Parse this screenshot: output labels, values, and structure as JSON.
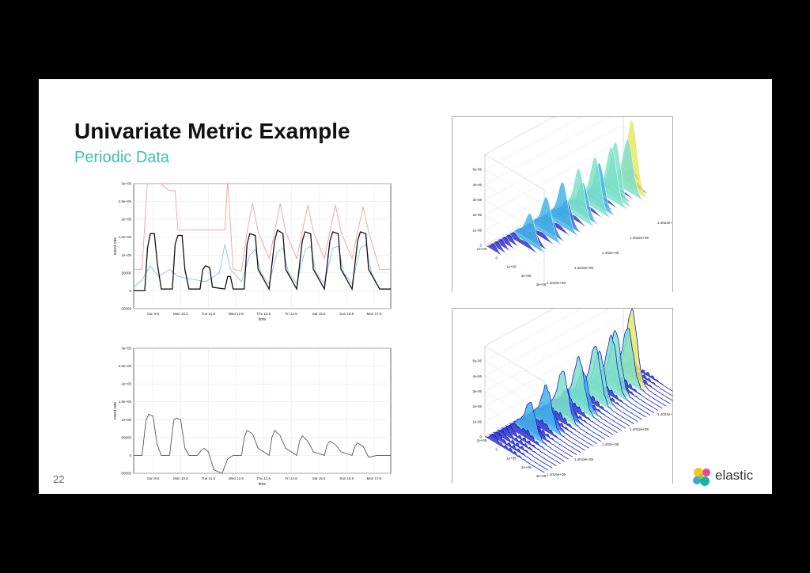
{
  "slide": {
    "title": "Univariate Metric Example",
    "subtitle": "Periodic Data",
    "page_number": "22",
    "logo_text": "elastic"
  },
  "colors": {
    "accent": "#3dbfb0",
    "upper_bound": "#e8a39e",
    "actual": "#111111",
    "model": "#8cbfe0"
  },
  "chart_data": [
    {
      "type": "line",
      "xlabel": "time",
      "ylabel": "event rate",
      "x_ticks": [
        "Sun 9.6",
        "Mon 10.6",
        "Tue 11.6",
        "Wed 12.6",
        "Thu 13.6",
        "Fri 14.6",
        "Sat 15.6",
        "Sun 16.6",
        "Mon 17.6"
      ],
      "y_ticks": [
        "3e+05",
        "2.5e+05",
        "2e+05",
        "1.5e+05",
        "1e+05",
        "50000",
        "0",
        "-50000"
      ],
      "ylim": [
        -50000,
        300000
      ],
      "grid": true,
      "series": [
        {
          "name": "",
          "color": "#e8a39e",
          "values": [
            [
              0,
              60000
            ],
            [
              0.3,
              60000
            ],
            [
              0.5,
              310000
            ],
            [
              0.6,
              310000
            ],
            [
              0.8,
              310000
            ],
            [
              1.3,
              280000
            ],
            [
              1.5,
              280000
            ],
            [
              1.6,
              170000
            ],
            [
              3.3,
              170000
            ],
            [
              3.4,
              310000
            ],
            [
              3.6,
              60000
            ],
            [
              3.9,
              55000
            ],
            [
              4.1,
              165000
            ],
            [
              4.3,
              245000
            ],
            [
              4.5,
              165000
            ],
            [
              4.9,
              90000
            ],
            [
              5.1,
              165000
            ],
            [
              5.3,
              245000
            ],
            [
              5.5,
              165000
            ],
            [
              5.9,
              90000
            ],
            [
              6.1,
              165000
            ],
            [
              6.3,
              240000
            ],
            [
              6.5,
              165000
            ],
            [
              6.9,
              90000
            ],
            [
              7.1,
              165000
            ],
            [
              7.3,
              240000
            ],
            [
              7.5,
              165000
            ],
            [
              7.9,
              90000
            ],
            [
              8.1,
              165000
            ],
            [
              8.3,
              235000
            ],
            [
              8.5,
              165000
            ],
            [
              8.9,
              60000
            ],
            [
              9.3,
              60000
            ]
          ]
        },
        {
          "name": "",
          "color": "#8cbfe0",
          "values": [
            [
              0,
              10000
            ],
            [
              0.3,
              30000
            ],
            [
              0.6,
              70000
            ],
            [
              0.9,
              40000
            ],
            [
              1.3,
              60000
            ],
            [
              1.6,
              40000
            ],
            [
              2.3,
              30000
            ],
            [
              2.6,
              25000
            ],
            [
              3.1,
              50000
            ],
            [
              3.3,
              130000
            ],
            [
              3.5,
              60000
            ],
            [
              3.9,
              25000
            ],
            [
              4.2,
              100000
            ],
            [
              4.4,
              115000
            ],
            [
              4.6,
              50000
            ],
            [
              4.9,
              20000
            ],
            [
              5.2,
              110000
            ],
            [
              5.4,
              120000
            ],
            [
              5.6,
              50000
            ],
            [
              5.9,
              20000
            ],
            [
              6.2,
              115000
            ],
            [
              6.4,
              125000
            ],
            [
              6.6,
              50000
            ],
            [
              6.9,
              20000
            ],
            [
              7.2,
              120000
            ],
            [
              7.4,
              125000
            ],
            [
              7.6,
              50000
            ],
            [
              7.9,
              20000
            ],
            [
              8.2,
              120000
            ],
            [
              8.4,
              130000
            ],
            [
              8.6,
              50000
            ],
            [
              8.9,
              5000
            ],
            [
              9.3,
              5000
            ]
          ]
        },
        {
          "name": "",
          "color": "#111111",
          "values": [
            [
              0,
              0
            ],
            [
              0.4,
              0
            ],
            [
              0.5,
              120000
            ],
            [
              0.6,
              160000
            ],
            [
              0.75,
              160000
            ],
            [
              0.85,
              80000
            ],
            [
              1.0,
              5000
            ],
            [
              1.4,
              5000
            ],
            [
              1.5,
              130000
            ],
            [
              1.6,
              155000
            ],
            [
              1.75,
              155000
            ],
            [
              1.85,
              60000
            ],
            [
              2.0,
              5000
            ],
            [
              2.4,
              5000
            ],
            [
              2.5,
              60000
            ],
            [
              2.6,
              70000
            ],
            [
              2.75,
              65000
            ],
            [
              2.85,
              10000
            ],
            [
              3.3,
              5000
            ],
            [
              3.4,
              40000
            ],
            [
              3.5,
              40000
            ],
            [
              3.6,
              5000
            ],
            [
              4.0,
              5000
            ],
            [
              4.1,
              130000
            ],
            [
              4.2,
              160000
            ],
            [
              4.4,
              155000
            ],
            [
              4.5,
              60000
            ],
            [
              4.9,
              5000
            ],
            [
              5.1,
              140000
            ],
            [
              5.2,
              170000
            ],
            [
              5.4,
              160000
            ],
            [
              5.5,
              60000
            ],
            [
              5.9,
              5000
            ],
            [
              6.1,
              140000
            ],
            [
              6.2,
              165000
            ],
            [
              6.4,
              160000
            ],
            [
              6.5,
              60000
            ],
            [
              6.9,
              5000
            ],
            [
              7.1,
              140000
            ],
            [
              7.2,
              165000
            ],
            [
              7.4,
              160000
            ],
            [
              7.5,
              60000
            ],
            [
              7.9,
              5000
            ],
            [
              8.1,
              140000
            ],
            [
              8.2,
              165000
            ],
            [
              8.4,
              160000
            ],
            [
              8.5,
              60000
            ],
            [
              8.9,
              5000
            ],
            [
              9.3,
              5000
            ]
          ]
        }
      ]
    },
    {
      "type": "line",
      "xlabel": "time",
      "ylabel": "event rate",
      "x_ticks": [
        "Sun 9.6",
        "Mon 10.6",
        "Tue 11.6",
        "Wed 12.6",
        "Thu 13.6",
        "Fri 14.6",
        "Sat 15.6",
        "Sun 16.6",
        "Mon 17.6"
      ],
      "y_ticks": [
        "3e+05",
        "2.5e+05",
        "2e+05",
        "1.5e+05",
        "1e+05",
        "50000",
        "0",
        "-50000"
      ],
      "ylim": [
        -50000,
        300000
      ],
      "grid": true,
      "series": [
        {
          "name": "",
          "color": "#555555",
          "values": [
            [
              0,
              0
            ],
            [
              0.3,
              0
            ],
            [
              0.45,
              100000
            ],
            [
              0.55,
              115000
            ],
            [
              0.7,
              110000
            ],
            [
              0.85,
              30000
            ],
            [
              1.0,
              0
            ],
            [
              1.3,
              0
            ],
            [
              1.45,
              100000
            ],
            [
              1.55,
              105000
            ],
            [
              1.7,
              100000
            ],
            [
              1.85,
              20000
            ],
            [
              2.0,
              0
            ],
            [
              2.3,
              0
            ],
            [
              2.45,
              15000
            ],
            [
              2.55,
              20000
            ],
            [
              2.7,
              10000
            ],
            [
              2.9,
              -40000
            ],
            [
              3.2,
              -50000
            ],
            [
              3.4,
              -10000
            ],
            [
              3.6,
              0
            ],
            [
              3.9,
              0
            ],
            [
              4.0,
              50000
            ],
            [
              4.1,
              70000
            ],
            [
              4.3,
              60000
            ],
            [
              4.5,
              20000
            ],
            [
              4.9,
              0
            ],
            [
              5.0,
              50000
            ],
            [
              5.1,
              70000
            ],
            [
              5.3,
              55000
            ],
            [
              5.5,
              20000
            ],
            [
              5.9,
              0
            ],
            [
              6.0,
              40000
            ],
            [
              6.1,
              55000
            ],
            [
              6.3,
              40000
            ],
            [
              6.5,
              10000
            ],
            [
              6.9,
              0
            ],
            [
              7.0,
              30000
            ],
            [
              7.1,
              40000
            ],
            [
              7.3,
              30000
            ],
            [
              7.5,
              10000
            ],
            [
              7.9,
              0
            ],
            [
              8.0,
              25000
            ],
            [
              8.1,
              35000
            ],
            [
              8.3,
              25000
            ],
            [
              8.5,
              -5000
            ],
            [
              8.8,
              0
            ],
            [
              9.3,
              0
            ]
          ]
        }
      ]
    }
  ],
  "surface_plots": [
    {
      "z_ticks": [
        "5e-06",
        "4e-06",
        "3e-06",
        "2e-06",
        "1e-06",
        "0"
      ],
      "x_ticks": [
        "1e+05",
        "0",
        "1e+05",
        "2e+05",
        "3e+05"
      ],
      "y_ticks": [
        "1.4026e+09",
        "1.4024e+09",
        "1.4022e+09",
        "1.402e+09",
        "1.4018e+09",
        "1.4016e+09"
      ]
    },
    {
      "z_ticks": [
        "5e-06",
        "4e-06",
        "3e-06",
        "2e-06",
        "1e-06",
        "0"
      ],
      "x_ticks": [
        "1e+05",
        "0",
        "1e+05",
        "2e+05",
        "3e+05"
      ],
      "y_ticks": [
        "1.4026e+09",
        "1.4024e+09",
        "1.4022e+09",
        "1.402e+09",
        "1.4018e+09",
        "1.4016e+09"
      ]
    }
  ]
}
